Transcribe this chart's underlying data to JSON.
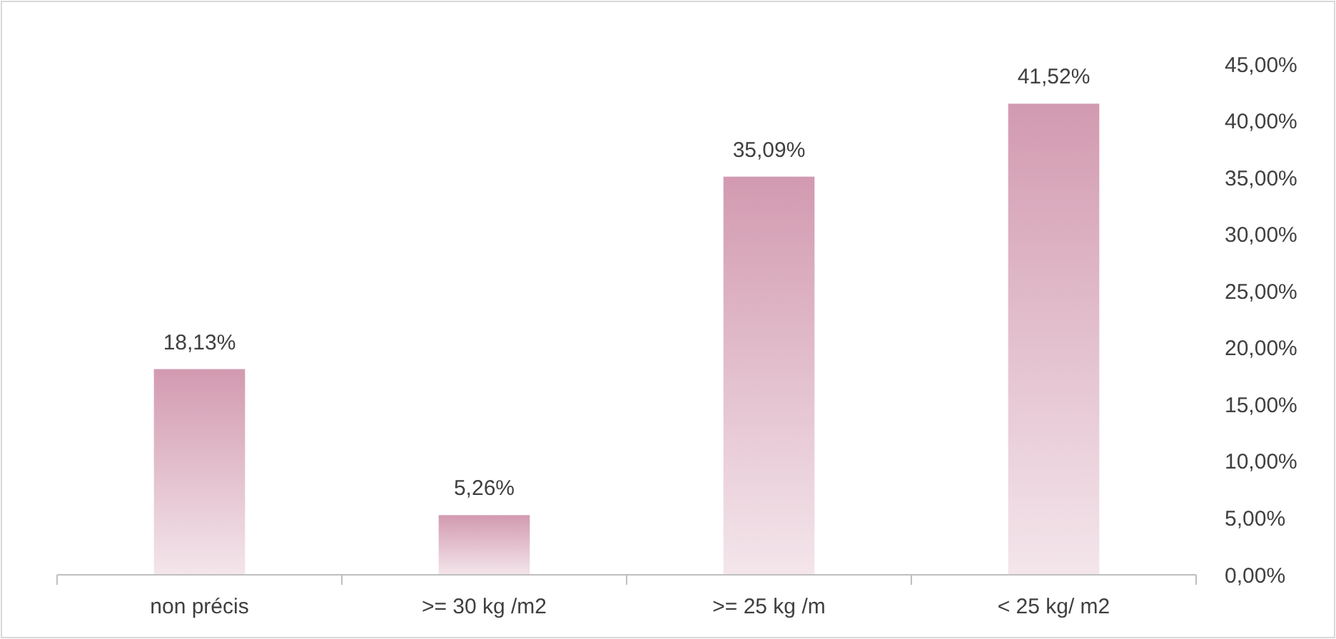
{
  "chart_data": {
    "type": "bar",
    "categories": [
      "non précis",
      ">= 30 kg /m2",
      ">= 25 kg /m",
      "< 25 kg/ m2"
    ],
    "values": [
      18.13,
      5.26,
      35.09,
      41.52
    ],
    "value_labels": [
      "18,13%",
      "5,26%",
      "35,09%",
      "41,52%"
    ],
    "color": "#d29ab0",
    "ylim": [
      0,
      45
    ],
    "yticks": [
      {
        "value": 0,
        "label": "0,00%"
      },
      {
        "value": 5,
        "label": "5,00%"
      },
      {
        "value": 10,
        "label": "10,00%"
      },
      {
        "value": 15,
        "label": "15,00%"
      },
      {
        "value": 20,
        "label": "20,00%"
      },
      {
        "value": 25,
        "label": "25,00%"
      },
      {
        "value": 30,
        "label": "30,00%"
      },
      {
        "value": 35,
        "label": "35,00%"
      },
      {
        "value": 40,
        "label": "40,00%"
      },
      {
        "value": 45,
        "label": "45,00%"
      }
    ],
    "grid": false
  }
}
